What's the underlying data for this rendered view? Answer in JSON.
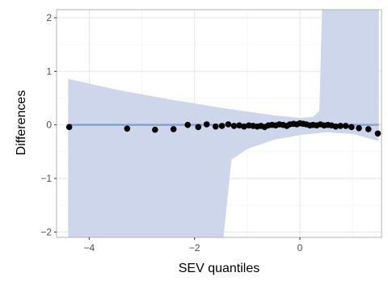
{
  "chart_data": {
    "type": "scatter",
    "xlabel": "SEV quantiles",
    "ylabel": "Differences",
    "xlim": [
      -4.62,
      1.55
    ],
    "ylim": [
      -2.1,
      2.15
    ],
    "x_ticks": [
      -4,
      -2,
      0
    ],
    "x_tick_labels": [
      "−4",
      "−2",
      "0"
    ],
    "y_ticks": [
      -2,
      -1,
      0,
      1,
      2
    ],
    "y_tick_labels": [
      "−2",
      "−1",
      "0",
      "1",
      "2"
    ],
    "grid": true,
    "colors": {
      "band": "#cdd6ea",
      "reference_line": "#8aa2cf",
      "points": "#000000",
      "grid_major": "#e6e6e6",
      "grid_minor": "#f2f2f2",
      "panel_border": "#b3b3b3"
    },
    "reference_line": {
      "y": 0
    },
    "band": {
      "upper": [
        [
          -4.4,
          0.86
        ],
        [
          -3.5,
          0.66
        ],
        [
          -2.5,
          0.48
        ],
        [
          -1.5,
          0.32
        ],
        [
          -1.0,
          0.25
        ],
        [
          -0.5,
          0.18
        ],
        [
          0.0,
          0.13
        ],
        [
          0.25,
          0.15
        ],
        [
          0.37,
          0.26
        ],
        [
          0.42,
          2.15
        ],
        [
          1.5,
          2.15
        ]
      ],
      "lower": [
        [
          -4.4,
          -2.1
        ],
        [
          -1.45,
          -2.1
        ],
        [
          -1.3,
          -0.65
        ],
        [
          -1.0,
          -0.45
        ],
        [
          -0.5,
          -0.28
        ],
        [
          0.0,
          -0.19
        ],
        [
          0.5,
          -0.14
        ],
        [
          1.0,
          -0.17
        ],
        [
          1.5,
          -0.3
        ]
      ]
    },
    "points": [
      [
        -4.38,
        -0.04
      ],
      [
        -3.28,
        -0.07
      ],
      [
        -2.75,
        -0.09
      ],
      [
        -2.4,
        -0.08
      ],
      [
        -2.13,
        0.0
      ],
      [
        -1.93,
        -0.04
      ],
      [
        -1.77,
        0.01
      ],
      [
        -1.6,
        -0.03
      ],
      [
        -1.48,
        -0.02
      ],
      [
        -1.36,
        0.01
      ],
      [
        -1.25,
        -0.02
      ],
      [
        -1.15,
        -0.01
      ],
      [
        -1.06,
        -0.03
      ],
      [
        -0.97,
        -0.01
      ],
      [
        -0.89,
        -0.02
      ],
      [
        -0.81,
        -0.03
      ],
      [
        -0.74,
        -0.02
      ],
      [
        -0.67,
        -0.04
      ],
      [
        -0.6,
        -0.01
      ],
      [
        -0.53,
        0.0
      ],
      [
        -0.46,
        -0.01
      ],
      [
        -0.39,
        0.01
      ],
      [
        -0.32,
        0.0
      ],
      [
        -0.25,
        -0.02
      ],
      [
        -0.19,
        0.01
      ],
      [
        -0.12,
        0.02
      ],
      [
        -0.06,
        0.01
      ],
      [
        0.0,
        0.03
      ],
      [
        0.06,
        0.02
      ],
      [
        0.12,
        0.01
      ],
      [
        0.19,
        -0.01
      ],
      [
        0.25,
        0.0
      ],
      [
        0.32,
        -0.01
      ],
      [
        0.39,
        0.01
      ],
      [
        0.46,
        -0.01
      ],
      [
        0.53,
        0.0
      ],
      [
        0.6,
        -0.01
      ],
      [
        0.68,
        -0.03
      ],
      [
        0.77,
        -0.02
      ],
      [
        0.87,
        -0.02
      ],
      [
        0.98,
        -0.04
      ],
      [
        1.12,
        -0.06
      ],
      [
        1.3,
        -0.08
      ],
      [
        1.48,
        -0.16
      ]
    ]
  }
}
